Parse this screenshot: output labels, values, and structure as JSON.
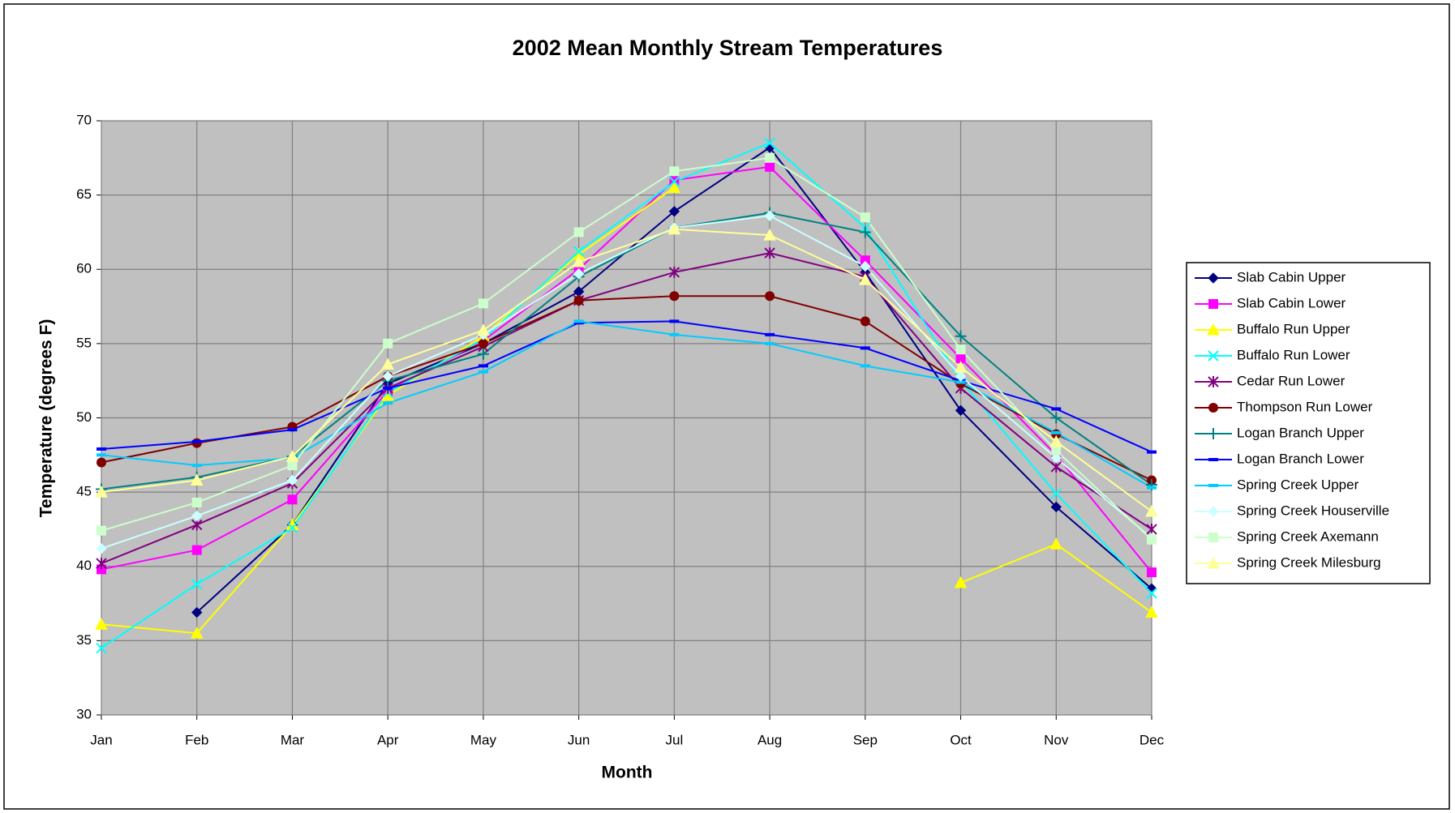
{
  "chart_data": {
    "type": "line",
    "title": "2002 Mean Monthly Stream Temperatures",
    "x_label": "Month",
    "y_label": "Temperature (degrees F)",
    "categories": [
      "Jan",
      "Feb",
      "Mar",
      "Apr",
      "May",
      "Jun",
      "Jul",
      "Aug",
      "Sep",
      "Oct",
      "Nov",
      "Dec"
    ],
    "ylim": [
      30,
      70
    ],
    "yticks": [
      30,
      35,
      40,
      45,
      50,
      55,
      60,
      65,
      70
    ],
    "grid": true,
    "legend": "right",
    "series": [
      {
        "name": "Slab Cabin Upper",
        "color": "#000080",
        "marker": "diamond",
        "values": [
          null,
          36.9,
          42.8,
          52.3,
          55.0,
          58.5,
          63.9,
          68.2,
          59.8,
          50.5,
          44.0,
          38.5
        ]
      },
      {
        "name": "Slab Cabin Lower",
        "color": "#ff00ff",
        "marker": "square",
        "values": [
          39.8,
          41.1,
          44.5,
          51.8,
          55.2,
          60.0,
          66.0,
          66.9,
          60.6,
          54.0,
          47.5,
          39.6
        ]
      },
      {
        "name": "Buffalo Run Upper",
        "color": "#ffff00",
        "marker": "triangle",
        "values": [
          36.1,
          35.5,
          42.8,
          51.5,
          55.5,
          61.0,
          65.5,
          null,
          null,
          38.9,
          41.5,
          36.9
        ]
      },
      {
        "name": "Buffalo Run Lower",
        "color": "#00ffff",
        "marker": "x",
        "values": [
          34.5,
          38.8,
          42.6,
          51.7,
          55.3,
          61.2,
          65.9,
          68.5,
          62.8,
          52.5,
          44.9,
          38.2
        ]
      },
      {
        "name": "Cedar Run Lower",
        "color": "#800080",
        "marker": "star",
        "values": [
          40.2,
          42.8,
          45.6,
          52.0,
          54.8,
          57.9,
          59.8,
          61.1,
          59.5,
          52.0,
          46.7,
          42.5
        ]
      },
      {
        "name": "Thompson Run Lower",
        "color": "#800000",
        "marker": "circle",
        "values": [
          47.0,
          48.3,
          49.4,
          52.8,
          55.0,
          57.9,
          58.2,
          58.2,
          56.5,
          52.3,
          48.9,
          45.8
        ]
      },
      {
        "name": "Logan Branch Upper",
        "color": "#008080",
        "marker": "plus",
        "values": [
          45.2,
          46.0,
          47.4,
          52.5,
          54.3,
          59.5,
          62.8,
          63.8,
          62.5,
          55.5,
          50.0,
          45.5
        ]
      },
      {
        "name": "Logan Branch Lower",
        "color": "#0000ff",
        "marker": "dash",
        "values": [
          47.9,
          48.4,
          49.2,
          52.0,
          53.5,
          56.4,
          56.5,
          55.6,
          54.7,
          52.5,
          50.6,
          47.7
        ]
      },
      {
        "name": "Spring Creek Upper",
        "color": "#00ccff",
        "marker": "dash",
        "values": [
          47.5,
          46.8,
          47.3,
          51.0,
          53.1,
          56.5,
          55.6,
          55.0,
          53.5,
          52.4,
          49.0,
          45.3
        ]
      },
      {
        "name": "Spring Creek Houserville",
        "color": "#ccffff",
        "marker": "diamond",
        "values": [
          41.2,
          43.4,
          45.8,
          52.8,
          55.6,
          59.7,
          62.8,
          63.6,
          60.2,
          52.8,
          47.3,
          41.9
        ]
      },
      {
        "name": "Spring Creek Axemann",
        "color": "#ccffcc",
        "marker": "square",
        "values": [
          42.4,
          44.3,
          46.8,
          55.0,
          57.7,
          62.5,
          66.6,
          67.5,
          63.5,
          54.6,
          47.8,
          41.8
        ]
      },
      {
        "name": "Spring Creek Milesburg",
        "color": "#ffff99",
        "marker": "triangle",
        "values": [
          45.0,
          45.8,
          47.4,
          53.6,
          55.9,
          60.5,
          62.7,
          62.3,
          59.3,
          53.4,
          48.4,
          43.7
        ]
      }
    ]
  }
}
